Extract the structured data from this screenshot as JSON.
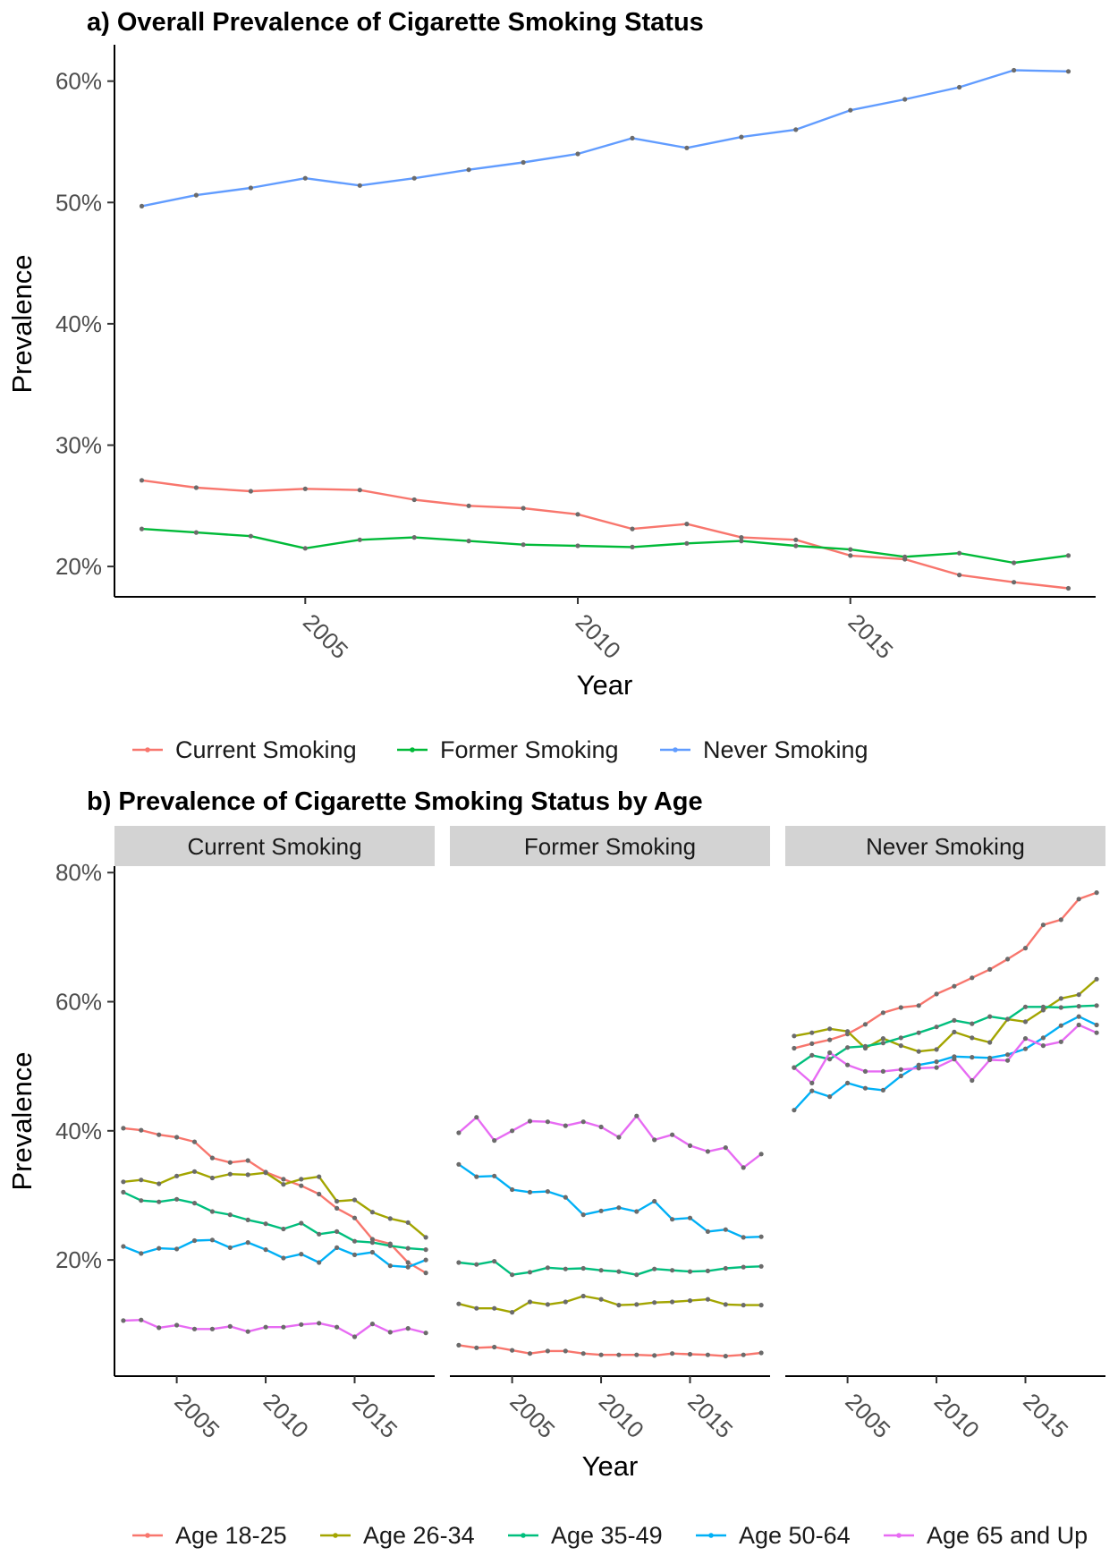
{
  "chart_data": [
    {
      "type": "line",
      "title": "a) Overall Prevalence of Cigarette Smoking Status",
      "xlabel": "Year",
      "ylabel": "Prevalence",
      "x": [
        2002,
        2003,
        2004,
        2005,
        2006,
        2007,
        2008,
        2009,
        2010,
        2011,
        2012,
        2013,
        2014,
        2015,
        2016,
        2017,
        2018,
        2019
      ],
      "xlim": [
        2001.5,
        2019.5
      ],
      "ylim": [
        0.175,
        0.63
      ],
      "xticks": [
        "2005",
        "2010",
        "2015"
      ],
      "xtick_values": [
        2005,
        2010,
        2015
      ],
      "yticks": [
        "20%",
        "30%",
        "40%",
        "50%",
        "60%"
      ],
      "ytick_values": [
        0.2,
        0.3,
        0.4,
        0.5,
        0.6
      ],
      "grid": false,
      "legend_position": "bottom",
      "series": [
        {
          "name": "Current Smoking",
          "color": "#F8766D",
          "values": [
            0.271,
            0.265,
            0.262,
            0.264,
            0.263,
            0.255,
            0.25,
            0.248,
            0.243,
            0.231,
            0.235,
            0.224,
            0.222,
            0.209,
            0.206,
            0.193,
            0.187,
            0.182
          ]
        },
        {
          "name": "Former Smoking",
          "color": "#00BA38",
          "values": [
            0.231,
            0.228,
            0.225,
            0.215,
            0.222,
            0.224,
            0.221,
            0.218,
            0.217,
            0.216,
            0.219,
            0.221,
            0.217,
            0.214,
            0.208,
            0.211,
            0.203,
            0.209
          ]
        },
        {
          "name": "Never Smoking",
          "color": "#619CFF",
          "values": [
            0.497,
            0.506,
            0.512,
            0.52,
            0.514,
            0.52,
            0.527,
            0.533,
            0.54,
            0.553,
            0.545,
            0.554,
            0.56,
            0.576,
            0.585,
            0.595,
            0.609,
            0.608
          ]
        }
      ]
    },
    {
      "type": "line",
      "title": "b) Prevalence of Cigarette Smoking Status by Age",
      "xlabel": "Year",
      "ylabel": "Prevalence",
      "x": [
        2002,
        2003,
        2004,
        2005,
        2006,
        2007,
        2008,
        2009,
        2010,
        2011,
        2012,
        2013,
        2014,
        2015,
        2016,
        2017,
        2018,
        2019
      ],
      "xlim": [
        2001.5,
        2019.5
      ],
      "ylim": [
        0.02,
        0.81
      ],
      "xticks": [
        "2005",
        "2010",
        "2015"
      ],
      "xtick_values": [
        2005,
        2010,
        2015
      ],
      "yticks": [
        "20%",
        "40%",
        "60%",
        "80%"
      ],
      "ytick_values": [
        0.2,
        0.4,
        0.6,
        0.8
      ],
      "grid": false,
      "legend_position": "bottom",
      "facets": [
        {
          "label": "Current Smoking",
          "series": [
            {
              "name": "Age 18-25",
              "color": "#F8766D",
              "values": [
                0.404,
                0.401,
                0.394,
                0.39,
                0.383,
                0.358,
                0.351,
                0.354,
                0.336,
                0.325,
                0.315,
                0.302,
                0.28,
                0.265,
                0.232,
                0.225,
                0.196,
                0.18
              ]
            },
            {
              "name": "Age 26-34",
              "color": "#A3A500",
              "values": [
                0.321,
                0.324,
                0.318,
                0.33,
                0.337,
                0.327,
                0.333,
                0.332,
                0.335,
                0.317,
                0.325,
                0.329,
                0.291,
                0.293,
                0.274,
                0.264,
                0.258,
                0.235
              ]
            },
            {
              "name": "Age 35-49",
              "color": "#00BF7D",
              "values": [
                0.305,
                0.292,
                0.29,
                0.294,
                0.288,
                0.275,
                0.27,
                0.262,
                0.256,
                0.248,
                0.257,
                0.24,
                0.244,
                0.229,
                0.227,
                0.222,
                0.218,
                0.216
              ]
            },
            {
              "name": "Age 50-64",
              "color": "#00B0F6",
              "values": [
                0.221,
                0.21,
                0.218,
                0.217,
                0.23,
                0.231,
                0.219,
                0.227,
                0.216,
                0.203,
                0.209,
                0.196,
                0.219,
                0.208,
                0.212,
                0.191,
                0.189,
                0.2
              ]
            },
            {
              "name": "Age 65 and Up",
              "color": "#E76BF3",
              "values": [
                0.106,
                0.107,
                0.095,
                0.099,
                0.093,
                0.093,
                0.097,
                0.089,
                0.096,
                0.096,
                0.1,
                0.102,
                0.096,
                0.081,
                0.101,
                0.088,
                0.094,
                0.087
              ]
            }
          ]
        },
        {
          "label": "Former Smoking",
          "series": [
            {
              "name": "Age 18-25",
              "color": "#F8766D",
              "values": [
                0.068,
                0.064,
                0.065,
                0.06,
                0.055,
                0.059,
                0.059,
                0.055,
                0.053,
                0.053,
                0.053,
                0.052,
                0.055,
                0.054,
                0.053,
                0.051,
                0.053,
                0.056
              ]
            },
            {
              "name": "Age 26-34",
              "color": "#A3A500",
              "values": [
                0.132,
                0.125,
                0.125,
                0.119,
                0.135,
                0.131,
                0.135,
                0.144,
                0.139,
                0.13,
                0.131,
                0.134,
                0.135,
                0.137,
                0.139,
                0.131,
                0.13,
                0.13
              ]
            },
            {
              "name": "Age 35-49",
              "color": "#00BF7D",
              "values": [
                0.196,
                0.193,
                0.198,
                0.177,
                0.181,
                0.188,
                0.186,
                0.187,
                0.184,
                0.182,
                0.177,
                0.186,
                0.184,
                0.182,
                0.183,
                0.187,
                0.189,
                0.19
              ]
            },
            {
              "name": "Age 50-64",
              "color": "#00B0F6",
              "values": [
                0.348,
                0.329,
                0.33,
                0.309,
                0.305,
                0.306,
                0.297,
                0.27,
                0.276,
                0.281,
                0.275,
                0.291,
                0.263,
                0.265,
                0.244,
                0.247,
                0.235,
                0.236
              ]
            },
            {
              "name": "Age 65 and Up",
              "color": "#E76BF3",
              "values": [
                0.397,
                0.421,
                0.385,
                0.4,
                0.415,
                0.414,
                0.408,
                0.414,
                0.406,
                0.39,
                0.423,
                0.386,
                0.394,
                0.377,
                0.368,
                0.374,
                0.343,
                0.364
              ]
            }
          ]
        },
        {
          "label": "Never Smoking",
          "series": [
            {
              "name": "Age 18-25",
              "color": "#F8766D",
              "values": [
                0.528,
                0.535,
                0.541,
                0.55,
                0.565,
                0.583,
                0.591,
                0.594,
                0.612,
                0.624,
                0.637,
                0.65,
                0.666,
                0.683,
                0.719,
                0.727,
                0.759,
                0.769
              ]
            },
            {
              "name": "Age 26-34",
              "color": "#A3A500",
              "values": [
                0.547,
                0.552,
                0.558,
                0.554,
                0.528,
                0.543,
                0.532,
                0.523,
                0.526,
                0.553,
                0.544,
                0.537,
                0.573,
                0.569,
                0.587,
                0.605,
                0.611,
                0.635
              ]
            },
            {
              "name": "Age 35-49",
              "color": "#00BF7D",
              "values": [
                0.498,
                0.517,
                0.511,
                0.529,
                0.531,
                0.536,
                0.544,
                0.552,
                0.561,
                0.571,
                0.566,
                0.577,
                0.573,
                0.592,
                0.592,
                0.591,
                0.593,
                0.594
              ]
            },
            {
              "name": "Age 50-64",
              "color": "#00B0F6",
              "values": [
                0.432,
                0.462,
                0.453,
                0.474,
                0.466,
                0.463,
                0.485,
                0.502,
                0.507,
                0.515,
                0.514,
                0.513,
                0.518,
                0.527,
                0.544,
                0.563,
                0.577,
                0.564
              ]
            },
            {
              "name": "Age 65 and Up",
              "color": "#E76BF3",
              "values": [
                0.498,
                0.474,
                0.521,
                0.502,
                0.492,
                0.492,
                0.495,
                0.497,
                0.498,
                0.511,
                0.478,
                0.51,
                0.509,
                0.543,
                0.532,
                0.538,
                0.564,
                0.552
              ]
            }
          ]
        }
      ]
    }
  ]
}
